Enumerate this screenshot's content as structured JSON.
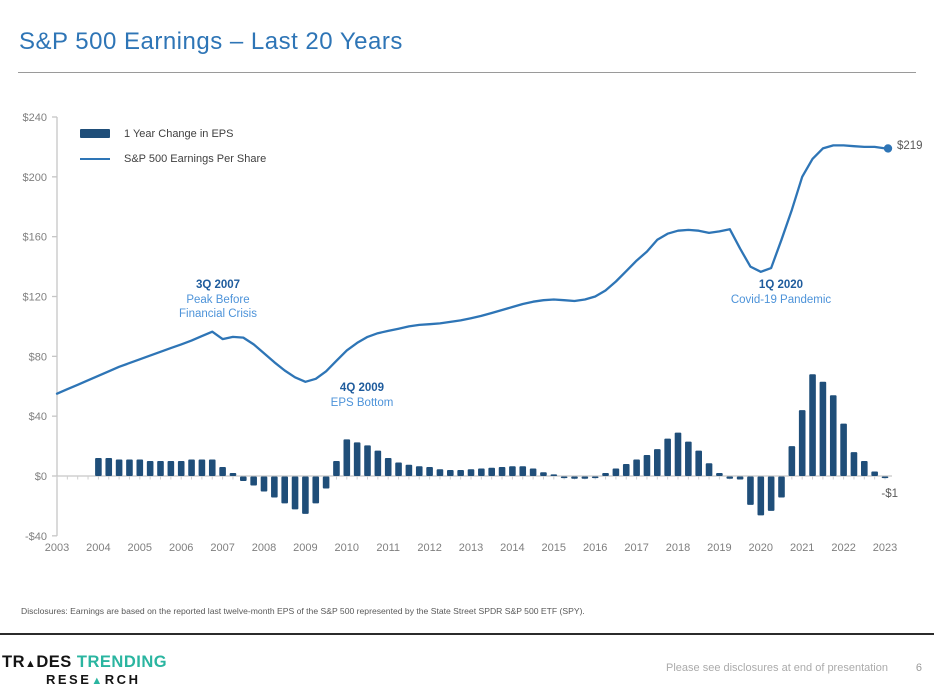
{
  "header": {
    "title": "S&P 500 Earnings – Last 20 Years"
  },
  "legend": {
    "bar_label": "1 Year Change in EPS",
    "line_label": "S&P 500 Earnings Per Share"
  },
  "annotations": [
    {
      "title": "3Q 2007",
      "line1": "Peak Before",
      "line2": "Financial Crisis"
    },
    {
      "title": "4Q 2009",
      "line1": "EPS Bottom",
      "line2": ""
    },
    {
      "title": "1Q 2020",
      "line1": "Covid-19 Pandemic",
      "line2": ""
    }
  ],
  "end_labels": {
    "line_value": "$219",
    "bar_value": "-$1"
  },
  "disclosures": "Disclosures: Earnings are based on the reported last twelve-month EPS of the S&P 500 represented by the State Street SPDR S&P 500 ETF (SPY).",
  "footer": {
    "logo_part1": "TR",
    "logo_tri1": "▲",
    "logo_part2": "DES",
    "logo_part3": "TRENDING",
    "logo_line2_a": "RESE",
    "logo_tri2": "▲",
    "logo_line2_b": "RCH",
    "note": "Please see disclosures at end of presentation",
    "page_number": "6"
  },
  "chart_data": {
    "type": "combo (bar + line)",
    "title": "",
    "x_axis": {
      "label": "",
      "tick_years": [
        2003,
        2004,
        2005,
        2006,
        2007,
        2008,
        2009,
        2010,
        2011,
        2012,
        2013,
        2014,
        2015,
        2016,
        2017,
        2018,
        2019,
        2020,
        2021,
        2022,
        2023
      ]
    },
    "y_axis": {
      "label": "",
      "min": -40,
      "max": 240,
      "step": 40,
      "ticks": [
        {
          "value": 240,
          "label": "$240"
        },
        {
          "value": 200,
          "label": "$200"
        },
        {
          "value": 160,
          "label": "$160"
        },
        {
          "value": 120,
          "label": "$120"
        },
        {
          "value": 80,
          "label": "$80"
        },
        {
          "value": 40,
          "label": "$40"
        },
        {
          "value": 0,
          "label": "$0"
        },
        {
          "value": -40,
          "label": "-$40"
        }
      ]
    },
    "grid": "zero-line only, quarterly minor ticks on baseline",
    "legend_position": "top-left inside plot",
    "series": [
      {
        "name": "1 Year Change in EPS",
        "type": "bar",
        "color": "#1F4E79",
        "frequency": "quarterly",
        "start_quarter": "2004Q1",
        "values": [
          12,
          12,
          11,
          11,
          11,
          10,
          10,
          10,
          10,
          11,
          11,
          11,
          6,
          2,
          -3,
          -6,
          -10,
          -14,
          -18,
          -22,
          -25,
          -18,
          -8,
          10,
          24.5,
          22.5,
          20.5,
          17,
          12,
          9,
          7.5,
          6.5,
          6,
          4.5,
          4,
          4,
          4.5,
          5,
          5.5,
          6,
          6.5,
          6.5,
          5,
          2.5,
          1,
          -1,
          -1.5,
          -1.5,
          -1,
          2,
          5,
          8,
          11,
          14,
          18,
          25,
          29,
          23,
          17,
          8.5,
          2,
          -1.5,
          -2,
          -19,
          -26,
          -23,
          -14,
          20,
          44,
          68,
          63,
          54,
          35,
          16,
          10,
          3,
          -1
        ],
        "last_value_label": "-$1"
      },
      {
        "name": "S&P 500 Earnings Per Share",
        "type": "line",
        "color": "#2E75B6",
        "frequency": "quarterly",
        "start_quarter": "2003Q1",
        "values": [
          55,
          58,
          61,
          64,
          67,
          70,
          73,
          75.5,
          78,
          80.5,
          83,
          85.5,
          88,
          90.5,
          93.5,
          96.5,
          91.5,
          93,
          92.5,
          88,
          82,
          76,
          70.5,
          66,
          63,
          65,
          70,
          77,
          84,
          89,
          93,
          95.5,
          97,
          98.5,
          100,
          101,
          101.5,
          102,
          103,
          104,
          105.5,
          107,
          109,
          111,
          113,
          115,
          116.5,
          117.5,
          118,
          117.5,
          117,
          118,
          120,
          124,
          130,
          137,
          144,
          150,
          158,
          162,
          164,
          164.5,
          164,
          162.5,
          163.5,
          165,
          152,
          140,
          136.5,
          139,
          158,
          178,
          200,
          212,
          219,
          221,
          221,
          220.5,
          220,
          220,
          219
        ],
        "end_marker": true,
        "last_value_label": "$219"
      }
    ],
    "annotations": [
      {
        "title": "3Q 2007",
        "text": "Peak Before Financial Crisis"
      },
      {
        "title": "4Q 2009",
        "text": "EPS Bottom"
      },
      {
        "title": "1Q 2020",
        "text": "Covid-19 Pandemic"
      }
    ]
  }
}
